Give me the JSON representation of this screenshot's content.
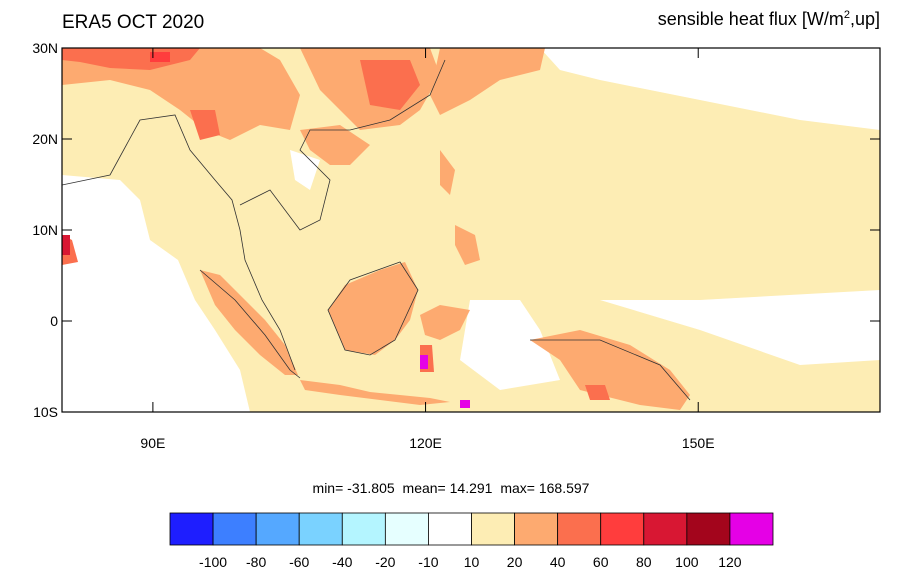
{
  "header": {
    "left_title": "ERA5 OCT 2020",
    "right_title_prefix": "sensible heat flux [W/m",
    "right_title_sup": "2",
    "right_title_suffix": ",up]"
  },
  "map": {
    "lon_range": [
      80,
      170
    ],
    "lat_range": [
      -10,
      30
    ],
    "lat_ticks": [
      {
        "value": 30,
        "label": "30N"
      },
      {
        "value": 20,
        "label": "20N"
      },
      {
        "value": 10,
        "label": "10N"
      },
      {
        "value": 0,
        "label": "0"
      },
      {
        "value": -10,
        "label": "10S"
      }
    ],
    "lon_ticks": [
      {
        "value": 90,
        "label": "90E"
      },
      {
        "value": 120,
        "label": "120E"
      },
      {
        "value": 150,
        "label": "150E"
      }
    ],
    "background_class_color": "#fdedb4"
  },
  "stats": {
    "min": "min= -31.805",
    "mean": "mean=  14.291",
    "max": "max= 168.597"
  },
  "colorbar": {
    "colors": [
      "#1e1eff",
      "#3d7fff",
      "#55a8ff",
      "#7ad2ff",
      "#b4f5ff",
      "#e6ffff",
      "#ffffff",
      "#fdedb4",
      "#fdaa70",
      "#fb6f4e",
      "#ff3d3d",
      "#d81733",
      "#a3051c",
      "#e500e6"
    ],
    "labels": [
      "-100",
      "-80",
      "-60",
      "-40",
      "-20",
      "-10",
      "10",
      "20",
      "40",
      "60",
      "80",
      "100",
      "120"
    ]
  }
}
